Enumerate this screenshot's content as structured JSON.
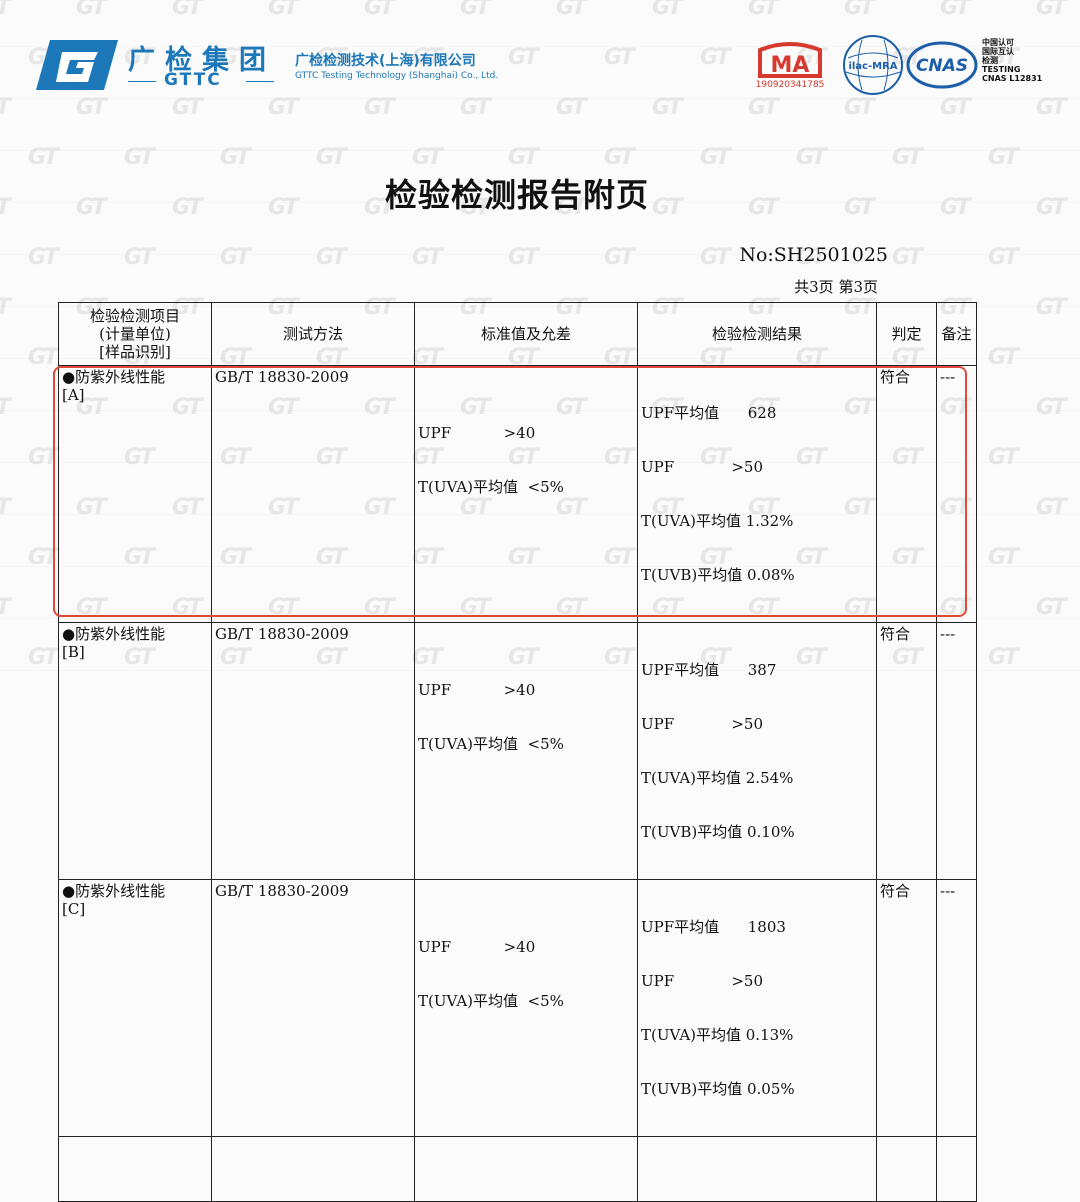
{
  "header": {
    "brand_cn": "广检集团",
    "brand_en": "GTTC",
    "company_cn": "广检检测技术(上海)有限公司",
    "company_en": "GTTC Testing Technology (Shanghai) Co., Ltd.",
    "cma_label": "MA",
    "cma_number": "190920341785",
    "ilac_label": "ilac-MRA",
    "cnas_label": "CNAS",
    "cnas_text": [
      "中国认可",
      "国际互认",
      "检测",
      "TESTING",
      "CNAS L12831"
    ]
  },
  "title": "检验检测报告附页",
  "report_no": "No:SH2501025",
  "pages": "共3页  第3页",
  "table": {
    "headers": {
      "item": [
        "检验检测项目",
        "(计量单位)",
        "[样品识别]"
      ],
      "method": "测试方法",
      "standard": "标准值及允差",
      "result": "检验检测结果",
      "judgement": "判定",
      "remark": "备注"
    },
    "rows": [
      {
        "item": "●防紫外线性能",
        "sample": "[A]",
        "method": "GB/T 18830-2009",
        "standard": [
          "UPF           >40",
          "T(UVA)平均值  <5%"
        ],
        "result": [
          "UPF平均值      628",
          "UPF            >50",
          "T(UVA)平均值 1.32%",
          "T(UVB)平均值 0.08%"
        ],
        "judgement": "符合",
        "remark": "---"
      },
      {
        "item": "●防紫外线性能",
        "sample": "[B]",
        "method": "GB/T 18830-2009",
        "standard": [
          "UPF           >40",
          "T(UVA)平均值  <5%"
        ],
        "result": [
          "UPF平均值      387",
          "UPF            >50",
          "T(UVA)平均值 2.54%",
          "T(UVB)平均值 0.10%"
        ],
        "judgement": "符合",
        "remark": "---"
      },
      {
        "item": "●防紫外线性能",
        "sample": "[C]",
        "method": "GB/T 18830-2009",
        "standard": [
          "UPF           >40",
          "T(UVA)平均值  <5%"
        ],
        "result": [
          "UPF平均值      1803",
          "UPF            >50",
          "T(UVA)平均值 0.13%",
          "T(UVB)平均值 0.05%"
        ],
        "judgement": "符合",
        "remark": "---"
      }
    ]
  },
  "colors": {
    "brand_blue": "#1c78b8",
    "cma_red": "#d63a2f",
    "highlight_red": "#e0483a"
  }
}
